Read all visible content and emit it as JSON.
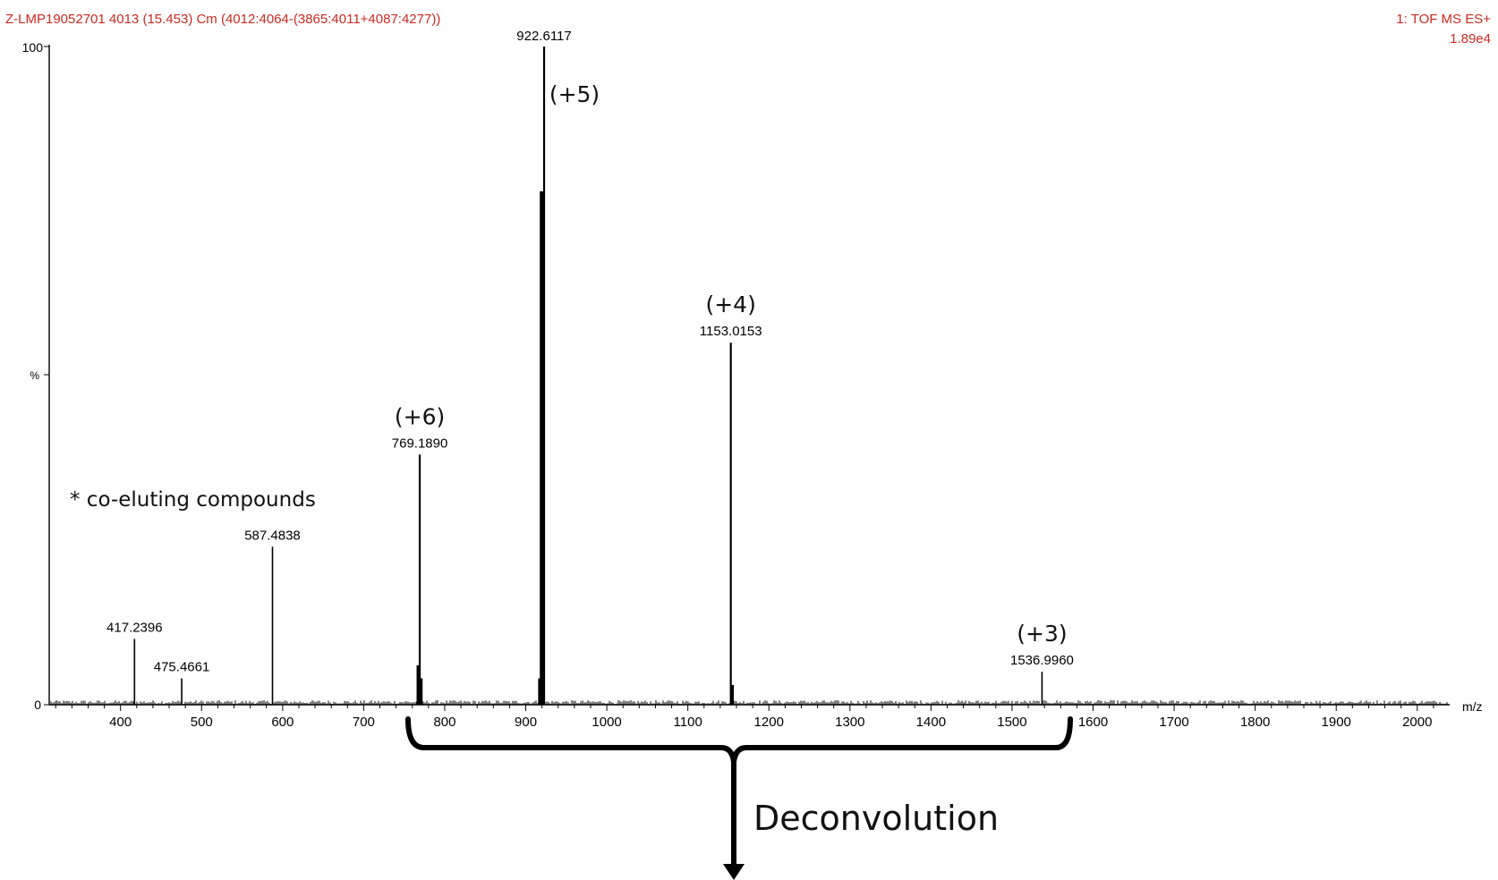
{
  "header": {
    "left": "Z-LMP19052701 4013 (15.453) Cm (4012:4064-(3865:4011+4087:4277))",
    "right1": "1: TOF MS ES+",
    "right2": "1.89e4"
  },
  "colors": {
    "header_text": "#cc2a22",
    "axis": "#000000",
    "spectrum": "#000000",
    "annotation": "#111111"
  },
  "note": "* co-eluting compounds",
  "deconvolution_label": "Deconvolution",
  "chart_data": {
    "type": "bar",
    "title": "",
    "xlabel": "m/z",
    "ylabel": "%",
    "xlim": [
      312,
      2040
    ],
    "ylim": [
      0,
      100
    ],
    "x_ticks": [
      400,
      500,
      600,
      700,
      800,
      900,
      1000,
      1100,
      1200,
      1300,
      1400,
      1500,
      1600,
      1700,
      1800,
      1900,
      2000
    ],
    "y_tick_labels": [
      "0",
      "%",
      "100"
    ],
    "peaks": [
      {
        "mz": 417.2396,
        "intensity": 10,
        "label": "417.2396"
      },
      {
        "mz": 475.4661,
        "intensity": 4,
        "label": "475.4661"
      },
      {
        "mz": 587.4838,
        "intensity": 24,
        "label": "587.4838"
      },
      {
        "mz": 769.189,
        "intensity": 38,
        "label": "769.1890",
        "charge": "(+6)"
      },
      {
        "mz": 922.6117,
        "intensity": 100,
        "label": "922.6117",
        "charge": "(+5)"
      },
      {
        "mz": 1153.0153,
        "intensity": 55,
        "label": "1153.0153",
        "charge": "(+4)"
      },
      {
        "mz": 1536.996,
        "intensity": 5,
        "label": "1536.9960",
        "charge": "(+3)"
      }
    ],
    "minor_peaks": [
      {
        "mz": 767.5,
        "intensity": 6
      },
      {
        "mz": 770.5,
        "intensity": 4
      },
      {
        "mz": 919.5,
        "intensity": 78
      },
      {
        "mz": 920.5,
        "intensity": 7
      },
      {
        "mz": 917.5,
        "intensity": 4
      },
      {
        "mz": 1154.5,
        "intensity": 3
      }
    ]
  }
}
